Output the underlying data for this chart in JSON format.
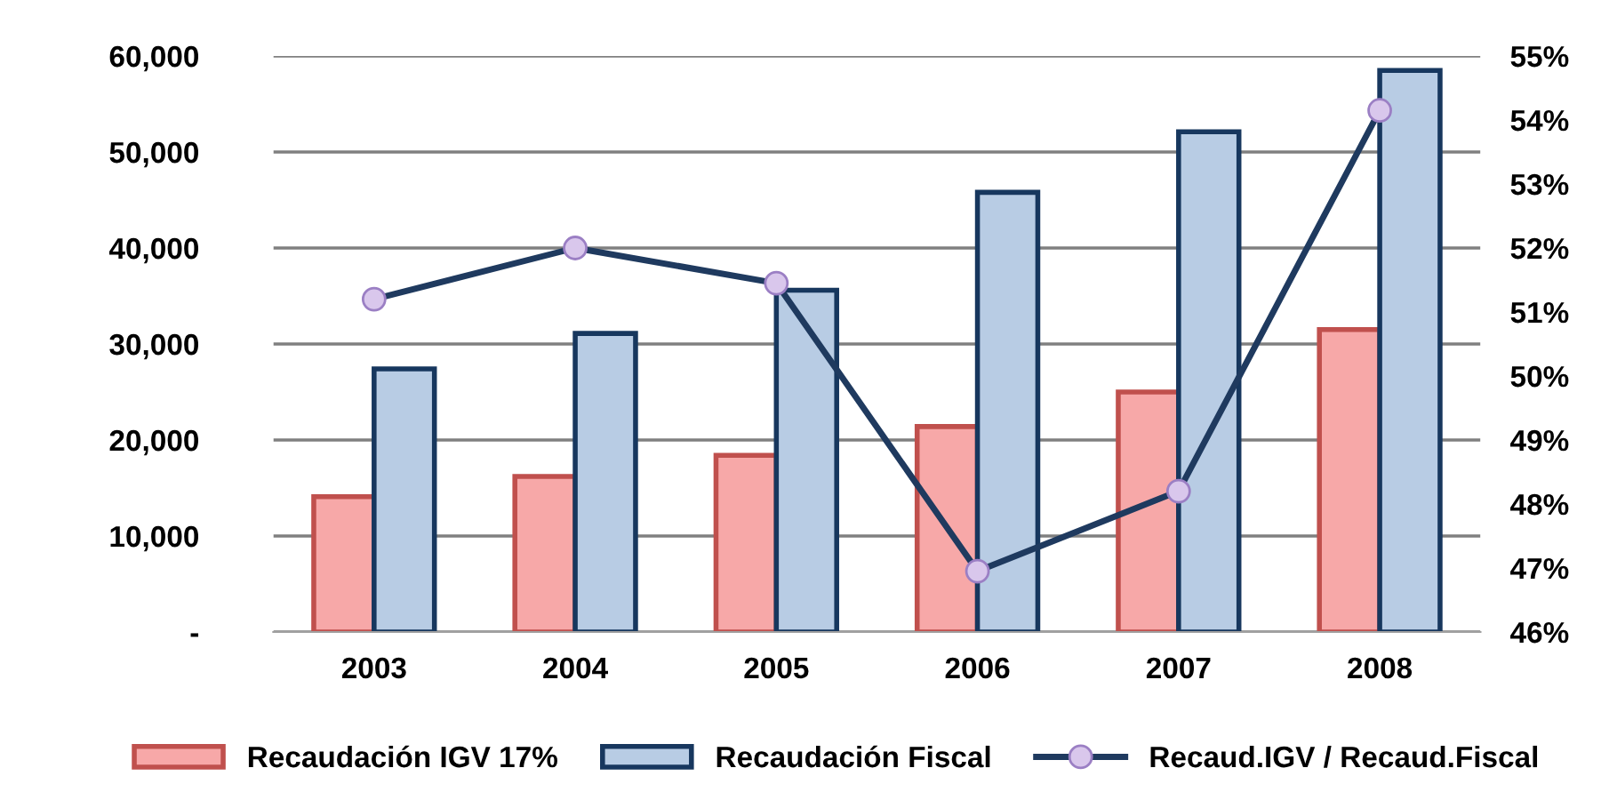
{
  "chart_data": {
    "type": "bar",
    "categories": [
      "2003",
      "2004",
      "2005",
      "2006",
      "2007",
      "2008"
    ],
    "series": [
      {
        "name": "Recaudación IGV 17%",
        "color": "#f7a8a8",
        "values": [
          14100,
          16200,
          18400,
          21400,
          25000,
          31500
        ]
      },
      {
        "name": "Recaudación Fiscal",
        "color": "#b8cce4",
        "values": [
          27400,
          31100,
          35600,
          45800,
          52100,
          58500
        ]
      },
      {
        "name": "Recaud.IGV / Recaud.Fiscal",
        "type": "line",
        "axis": "y2",
        "color": "#1f3a5f",
        "marker": "circle",
        "values": [
          51.2,
          52.0,
          51.45,
          46.95,
          48.2,
          54.15
        ]
      }
    ],
    "ylim": [
      0,
      60000
    ],
    "yticks": [
      {
        "value": 0,
        "label": "-"
      },
      {
        "value": 10000,
        "label": "10,000"
      },
      {
        "value": 20000,
        "label": "20,000"
      },
      {
        "value": 30000,
        "label": "30,000"
      },
      {
        "value": 40000,
        "label": "40,000"
      },
      {
        "value": 50000,
        "label": "50,000"
      },
      {
        "value": 60000,
        "label": "60,000"
      }
    ],
    "y2lim": [
      46,
      55
    ],
    "y2ticks": [
      {
        "value": 46,
        "label": "46%"
      },
      {
        "value": 47,
        "label": "47%"
      },
      {
        "value": 48,
        "label": "48%"
      },
      {
        "value": 49,
        "label": "49%"
      },
      {
        "value": 50,
        "label": "50%"
      },
      {
        "value": 51,
        "label": "51%"
      },
      {
        "value": 52,
        "label": "52%"
      },
      {
        "value": 53,
        "label": "53%"
      },
      {
        "value": 54,
        "label": "54%"
      },
      {
        "value": 55,
        "label": "55%"
      }
    ],
    "grid": "y",
    "legend": "bottom"
  }
}
